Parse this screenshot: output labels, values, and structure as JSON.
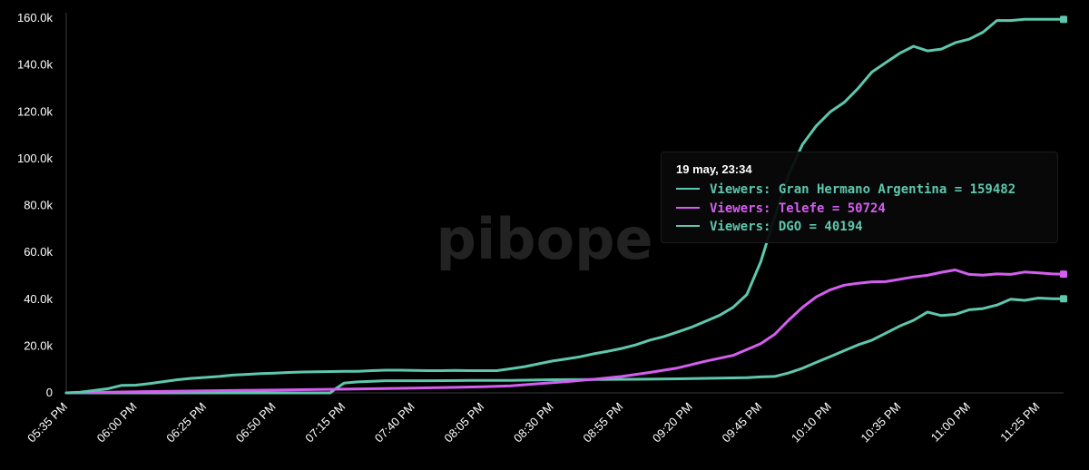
{
  "colors": {
    "gh": "#5ec7ad",
    "telefe": "#d45ef0",
    "dgo": "#5ec7ad",
    "axis": "#ffffff",
    "background": "#000000"
  },
  "watermark": "pibope",
  "tooltip": {
    "title": "19 may, 23:34",
    "rows": [
      {
        "label": "Viewers: Gran Hermano Argentina = 159482",
        "series": "gh"
      },
      {
        "label": "Viewers: Telefe = 50724",
        "series": "telefe"
      },
      {
        "label": "Viewers: DGO = 40194",
        "series": "dgo"
      }
    ]
  },
  "chart_data": {
    "type": "line",
    "xlabel": "",
    "ylabel": "",
    "x_range_minutes": [
      1055,
      1414
    ],
    "x_tick_minutes": [
      1055,
      1080,
      1105,
      1130,
      1155,
      1180,
      1205,
      1230,
      1255,
      1280,
      1305,
      1330,
      1355,
      1380,
      1405
    ],
    "x_ticks": [
      "05:35 PM",
      "06:00 PM",
      "06:25 PM",
      "06:50 PM",
      "07:15 PM",
      "07:40 PM",
      "08:05 PM",
      "08:30 PM",
      "08:55 PM",
      "09:20 PM",
      "09:45 PM",
      "10:10 PM",
      "10:35 PM",
      "11:00 PM",
      "11:25 PM"
    ],
    "ylim": [
      0,
      160000
    ],
    "y_tick_values": [
      0,
      20000,
      40000,
      60000,
      80000,
      100000,
      120000,
      140000,
      160000
    ],
    "y_ticks": [
      "0",
      "20.0k",
      "40.0k",
      "60.0k",
      "80.0k",
      "100.0k",
      "120.0k",
      "140.0k",
      "160.0k"
    ],
    "grid": false,
    "series": [
      {
        "name": "Viewers: Gran Hermano Argentina",
        "color_key": "gh",
        "x": [
          1055,
          1060,
          1065,
          1070,
          1075,
          1080,
          1085,
          1090,
          1095,
          1100,
          1105,
          1110,
          1115,
          1120,
          1125,
          1130,
          1135,
          1140,
          1145,
          1150,
          1155,
          1160,
          1165,
          1170,
          1175,
          1180,
          1185,
          1190,
          1195,
          1200,
          1205,
          1210,
          1215,
          1220,
          1225,
          1230,
          1235,
          1240,
          1245,
          1250,
          1255,
          1260,
          1265,
          1270,
          1275,
          1280,
          1285,
          1290,
          1295,
          1300,
          1305,
          1310,
          1315,
          1320,
          1325,
          1330,
          1335,
          1340,
          1345,
          1350,
          1355,
          1360,
          1365,
          1370,
          1375,
          1380,
          1385,
          1390,
          1395,
          1400,
          1405,
          1410,
          1414
        ],
        "values": [
          0,
          300,
          1000,
          1800,
          3200,
          3300,
          4000,
          4800,
          5600,
          6200,
          6600,
          7000,
          7600,
          7900,
          8200,
          8400,
          8700,
          8900,
          9000,
          9100,
          9200,
          9200,
          9500,
          9700,
          9700,
          9600,
          9500,
          9500,
          9600,
          9500,
          9500,
          9500,
          10300,
          11200,
          12400,
          13600,
          14500,
          15400,
          16700,
          17800,
          19000,
          20500,
          22500,
          24000,
          26000,
          28000,
          30500,
          33000,
          36500,
          42000,
          56000,
          75000,
          93000,
          106000,
          114000,
          120000,
          124000,
          130000,
          137000,
          141000,
          145000,
          148000,
          146000,
          146800,
          149500,
          151000,
          154000,
          159000,
          159000,
          159482,
          159482,
          159482,
          159482
        ]
      },
      {
        "name": "Viewers: Telefe",
        "color_key": "telefe",
        "x": [
          1055,
          1080,
          1105,
          1130,
          1155,
          1180,
          1205,
          1215,
          1225,
          1235,
          1245,
          1255,
          1265,
          1275,
          1285,
          1295,
          1305,
          1310,
          1315,
          1320,
          1325,
          1330,
          1335,
          1340,
          1345,
          1350,
          1355,
          1360,
          1365,
          1370,
          1375,
          1380,
          1385,
          1390,
          1395,
          1400,
          1405,
          1410,
          1414
        ],
        "values": [
          0,
          500,
          900,
          1200,
          1600,
          2000,
          2600,
          3000,
          3900,
          4800,
          5800,
          7000,
          8700,
          10600,
          13500,
          16000,
          21000,
          25000,
          31000,
          36500,
          41000,
          44000,
          46000,
          46800,
          47400,
          47500,
          48500,
          49500,
          50200,
          51500,
          52500,
          50600,
          50300,
          50800,
          50600,
          51600,
          51200,
          50800,
          50724
        ]
      },
      {
        "name": "Viewers: DGO",
        "color_key": "dgo",
        "x": [
          1055,
          1080,
          1105,
          1125,
          1145,
          1150,
          1152,
          1155,
          1160,
          1170,
          1185,
          1200,
          1215,
          1230,
          1245,
          1260,
          1275,
          1290,
          1300,
          1305,
          1310,
          1315,
          1320,
          1325,
          1330,
          1335,
          1340,
          1345,
          1350,
          1355,
          1360,
          1365,
          1370,
          1375,
          1380,
          1385,
          1390,
          1395,
          1400,
          1405,
          1410,
          1414
        ],
        "values": [
          0,
          0,
          0,
          0,
          0,
          0,
          1800,
          4200,
          4700,
          5200,
          5200,
          5300,
          5300,
          5600,
          5700,
          5800,
          6000,
          6300,
          6500,
          6800,
          7000,
          8500,
          10500,
          13000,
          15500,
          18000,
          20500,
          22500,
          25500,
          28500,
          31000,
          34500,
          33000,
          33500,
          35500,
          36000,
          37500,
          40000,
          39500,
          40500,
          40194,
          40194
        ]
      }
    ]
  }
}
